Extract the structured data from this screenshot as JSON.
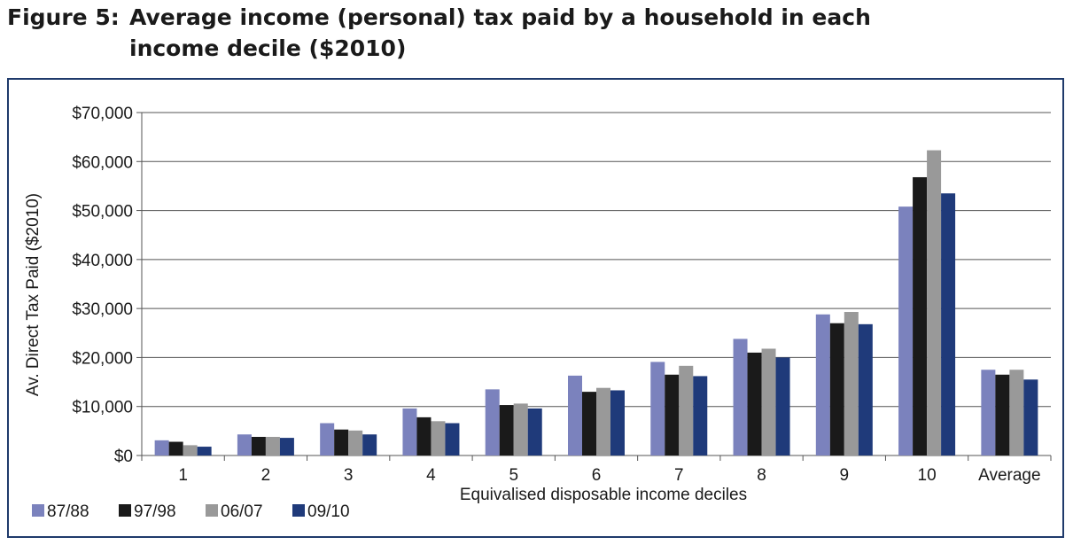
{
  "figure": {
    "label": "Figure 5:",
    "title_line1": "Average income (personal) tax paid by a household in each",
    "title_line2": "income decile ($2010)"
  },
  "chart_data": {
    "type": "bar",
    "title": "Average income (personal) tax paid by a household in each income decile ($2010)",
    "xlabel": "Equivalised disposable income deciles",
    "ylabel": "Av. Direct Tax Paid ($2010)",
    "ylim": [
      0,
      70000
    ],
    "yticks": [
      0,
      10000,
      20000,
      30000,
      40000,
      50000,
      60000,
      70000
    ],
    "ytick_labels": [
      "$0",
      "$10,000",
      "$20,000",
      "$30,000",
      "$40,000",
      "$50,000",
      "$60,000",
      "$70,000"
    ],
    "categories": [
      "1",
      "2",
      "3",
      "4",
      "5",
      "6",
      "7",
      "8",
      "9",
      "10",
      "Average"
    ],
    "grid": true,
    "legend_position": "bottom-left",
    "series": [
      {
        "name": "87/88",
        "color": "#7b82bd",
        "values": [
          3100,
          4300,
          6600,
          9600,
          13500,
          16300,
          19100,
          23800,
          28800,
          50800,
          17500
        ]
      },
      {
        "name": "97/98",
        "color": "#1a1a1a",
        "values": [
          2800,
          3800,
          5300,
          7800,
          10300,
          13000,
          16500,
          21000,
          27000,
          56800,
          16500
        ]
      },
      {
        "name": "06/07",
        "color": "#999999",
        "values": [
          2100,
          3800,
          5100,
          7000,
          10600,
          13800,
          18300,
          21800,
          29300,
          62300,
          17500
        ]
      },
      {
        "name": "09/10",
        "color": "#1f3a7a",
        "values": [
          1800,
          3600,
          4300,
          6600,
          9600,
          13300,
          16200,
          20000,
          26800,
          53500,
          15500
        ]
      }
    ]
  }
}
